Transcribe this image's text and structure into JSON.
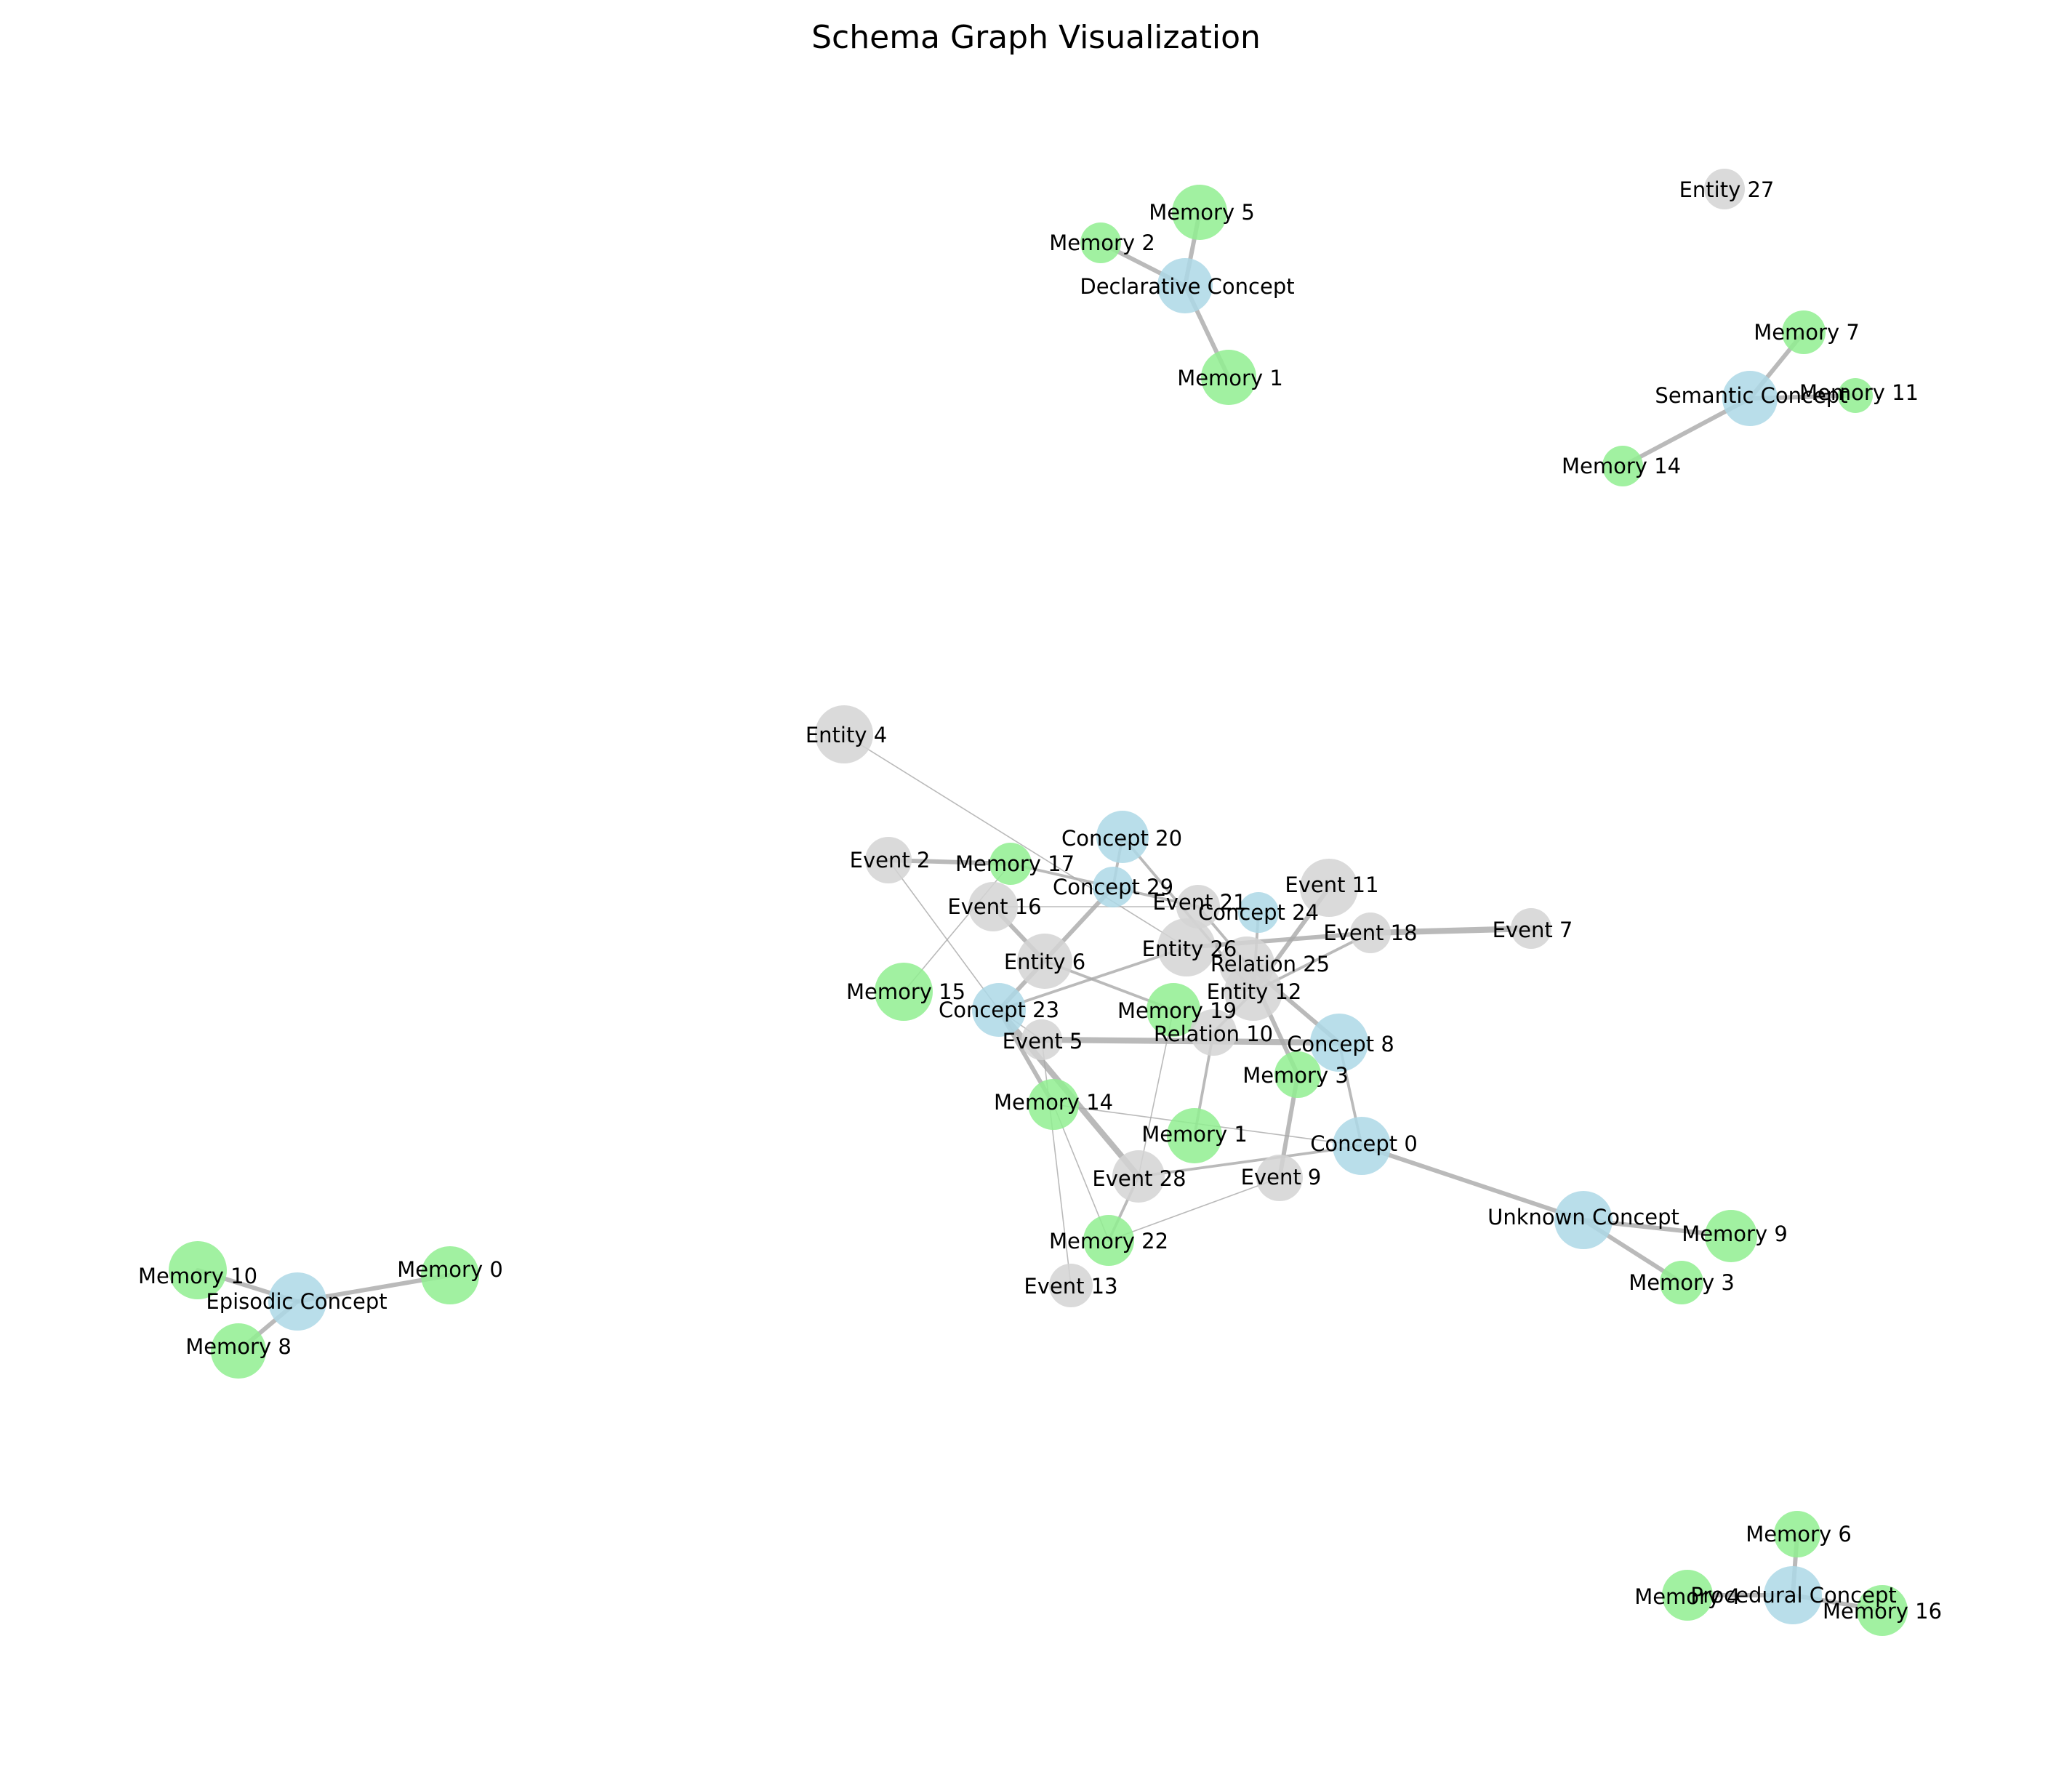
{
  "title": "Schema Graph Visualization",
  "colors": {
    "concept": "#add8e6",
    "memory": "#90ee90",
    "other": "#d3d3d3",
    "edge": "#a9a9a9"
  },
  "nodes": [
    {
      "label": "Memory 5",
      "type": "memory"
    },
    {
      "label": "Memory 2",
      "type": "memory"
    },
    {
      "label": "Declarative Concept",
      "type": "concept"
    },
    {
      "label": "Memory 1",
      "type": "memory"
    },
    {
      "label": "Entity 27",
      "type": "other"
    },
    {
      "label": "Memory 7",
      "type": "memory"
    },
    {
      "label": "Semantic Concept",
      "type": "concept"
    },
    {
      "label": "Memory 11",
      "type": "memory"
    },
    {
      "label": "Memory 14",
      "type": "memory"
    },
    {
      "label": "Entity 4",
      "type": "other"
    },
    {
      "label": "Event 2",
      "type": "other"
    },
    {
      "label": "Memory 17",
      "type": "memory"
    },
    {
      "label": "Concept 20",
      "type": "concept"
    },
    {
      "label": "Concept 29",
      "type": "concept"
    },
    {
      "label": "Event 16",
      "type": "other"
    },
    {
      "label": "Event 21",
      "type": "other"
    },
    {
      "label": "Concept 24",
      "type": "concept"
    },
    {
      "label": "Event 11",
      "type": "other"
    },
    {
      "label": "Event 18",
      "type": "other"
    },
    {
      "label": "Event 7",
      "type": "other"
    },
    {
      "label": "Entity 6",
      "type": "other"
    },
    {
      "label": "Entity 26",
      "type": "other"
    },
    {
      "label": "Relation 25",
      "type": "other"
    },
    {
      "label": "Entity 12",
      "type": "other"
    },
    {
      "label": "Memory 15",
      "type": "memory"
    },
    {
      "label": "Concept 23",
      "type": "concept"
    },
    {
      "label": "Memory 19",
      "type": "memory"
    },
    {
      "label": "Event 5",
      "type": "other"
    },
    {
      "label": "Relation 10",
      "type": "other"
    },
    {
      "label": "Concept 8",
      "type": "concept"
    },
    {
      "label": "Memory 3",
      "type": "memory"
    },
    {
      "label": "Memory 14",
      "type": "memory"
    },
    {
      "label": "Memory 1",
      "type": "memory"
    },
    {
      "label": "Concept 0",
      "type": "concept"
    },
    {
      "label": "Event 28",
      "type": "other"
    },
    {
      "label": "Event 9",
      "type": "other"
    },
    {
      "label": "Unknown Concept",
      "type": "concept"
    },
    {
      "label": "Memory 9",
      "type": "memory"
    },
    {
      "label": "Memory 3",
      "type": "memory"
    },
    {
      "label": "Memory 22",
      "type": "memory"
    },
    {
      "label": "Event 13",
      "type": "other"
    },
    {
      "label": "Memory 10",
      "type": "memory"
    },
    {
      "label": "Episodic Concept",
      "type": "concept"
    },
    {
      "label": "Memory 0",
      "type": "memory"
    },
    {
      "label": "Memory 8",
      "type": "memory"
    },
    {
      "label": "Memory 6",
      "type": "memory"
    },
    {
      "label": "Procedural Concept",
      "type": "concept"
    },
    {
      "label": "Memory 4",
      "type": "memory"
    },
    {
      "label": "Memory 16",
      "type": "memory"
    }
  ],
  "edges": [
    {
      "source": 2,
      "target": 0,
      "weight": 3
    },
    {
      "source": 2,
      "target": 1,
      "weight": 3
    },
    {
      "source": 2,
      "target": 3,
      "weight": 3
    },
    {
      "source": 6,
      "target": 5,
      "weight": 3
    },
    {
      "source": 6,
      "target": 7,
      "weight": 3
    },
    {
      "source": 6,
      "target": 8,
      "weight": 3
    },
    {
      "source": 42,
      "target": 41,
      "weight": 3
    },
    {
      "source": 42,
      "target": 43,
      "weight": 3
    },
    {
      "source": 42,
      "target": 44,
      "weight": 3
    },
    {
      "source": 46,
      "target": 45,
      "weight": 3
    },
    {
      "source": 46,
      "target": 47,
      "weight": 3
    },
    {
      "source": 46,
      "target": 48,
      "weight": 3
    },
    {
      "source": 36,
      "target": 37,
      "weight": 3
    },
    {
      "source": 36,
      "target": 38,
      "weight": 3
    },
    {
      "source": 33,
      "target": 36,
      "weight": 3
    },
    {
      "source": 9,
      "target": 21,
      "weight": 1
    },
    {
      "source": 10,
      "target": 11,
      "weight": 3
    },
    {
      "source": 10,
      "target": 25,
      "weight": 1
    },
    {
      "source": 11,
      "target": 24,
      "weight": 1
    },
    {
      "source": 11,
      "target": 15,
      "weight": 2
    },
    {
      "source": 12,
      "target": 13,
      "weight": 2
    },
    {
      "source": 12,
      "target": 23,
      "weight": 2
    },
    {
      "source": 13,
      "target": 25,
      "weight": 3
    },
    {
      "source": 14,
      "target": 20,
      "weight": 3
    },
    {
      "source": 14,
      "target": 15,
      "weight": 1
    },
    {
      "source": 15,
      "target": 22,
      "weight": 2
    },
    {
      "source": 16,
      "target": 23,
      "weight": 2
    },
    {
      "source": 17,
      "target": 23,
      "weight": 3
    },
    {
      "source": 18,
      "target": 19,
      "weight": 4
    },
    {
      "source": 18,
      "target": 21,
      "weight": 3
    },
    {
      "source": 18,
      "target": 23,
      "weight": 2
    },
    {
      "source": 20,
      "target": 26,
      "weight": 2
    },
    {
      "source": 21,
      "target": 25,
      "weight": 2
    },
    {
      "source": 22,
      "target": 29,
      "weight": 3
    },
    {
      "source": 22,
      "target": 30,
      "weight": 3
    },
    {
      "source": 23,
      "target": 28,
      "weight": 2
    },
    {
      "source": 25,
      "target": 27,
      "weight": 1
    },
    {
      "source": 25,
      "target": 31,
      "weight": 3
    },
    {
      "source": 25,
      "target": 34,
      "weight": 4
    },
    {
      "source": 27,
      "target": 29,
      "weight": 4
    },
    {
      "source": 27,
      "target": 40,
      "weight": 1
    },
    {
      "source": 28,
      "target": 32,
      "weight": 2
    },
    {
      "source": 26,
      "target": 34,
      "weight": 1
    },
    {
      "source": 29,
      "target": 33,
      "weight": 2
    },
    {
      "source": 30,
      "target": 35,
      "weight": 3
    },
    {
      "source": 31,
      "target": 39,
      "weight": 1
    },
    {
      "source": 31,
      "target": 33,
      "weight": 1
    },
    {
      "source": 33,
      "target": 34,
      "weight": 2
    },
    {
      "source": 35,
      "target": 39,
      "weight": 1
    },
    {
      "source": 39,
      "target": 34,
      "weight": 2
    }
  ]
}
